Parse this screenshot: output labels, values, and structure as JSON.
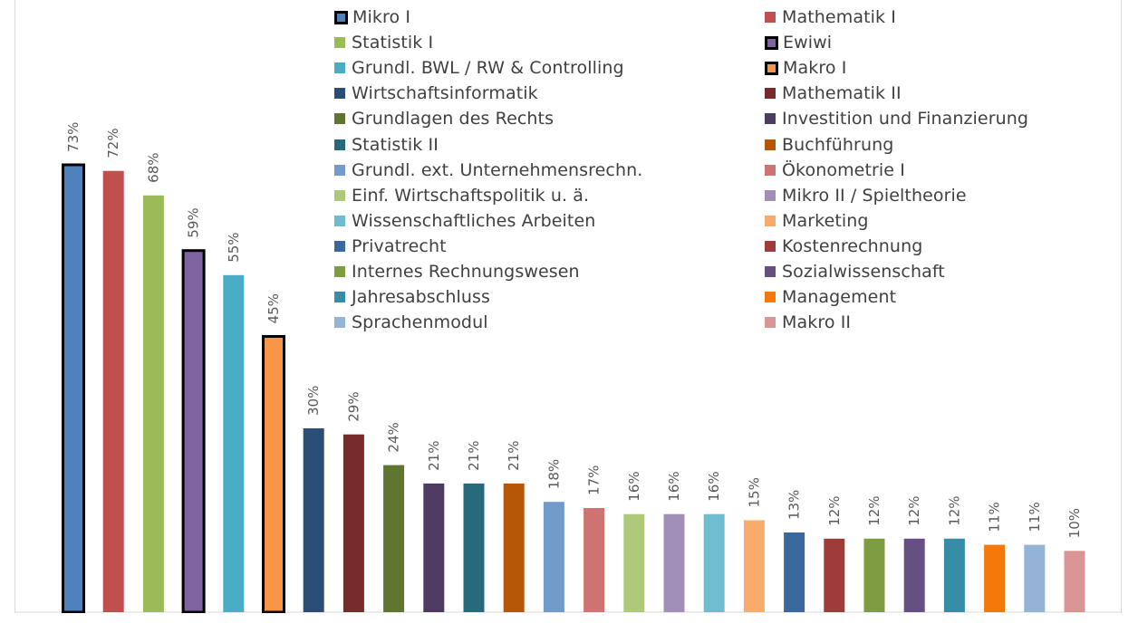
{
  "chart_data": {
    "type": "bar",
    "title": "",
    "xlabel": "",
    "ylabel": "",
    "ylim": [
      0,
      0.86
    ],
    "value_format": "percent",
    "categories": [
      "Mikro I",
      "Mathematik I",
      "Statistik I",
      "Ewiwi",
      "Grundl.  BWL / RW & Controlling",
      "Makro I",
      "Wirtschaftsinformatik",
      "Mathematik II",
      "Grundlagen des Rechts",
      "Investition und Finanzierung",
      "Statistik II",
      "Buchführung",
      "Grundl. ext. Unternehmensrechn.",
      "Ökonometrie I",
      "Einf. Wirtschaftspolitik u. ä.",
      "Mikro II / Spieltheorie",
      "Wissenschaftliches Arbeiten",
      "Marketing",
      "Privatrecht",
      "Kostenrechnung",
      "Internes Rechnungswesen",
      "Sozialwissenschaft",
      "Jahresabschluss",
      "Management",
      "Sprachenmodul",
      "Makro II"
    ],
    "values": [
      0.73,
      0.72,
      0.68,
      0.59,
      0.55,
      0.45,
      0.3,
      0.29,
      0.24,
      0.21,
      0.21,
      0.21,
      0.18,
      0.17,
      0.16,
      0.16,
      0.16,
      0.15,
      0.13,
      0.12,
      0.12,
      0.12,
      0.12,
      0.11,
      0.11,
      0.1
    ],
    "labels": [
      "73%",
      "72%",
      "68%",
      "59%",
      "55%",
      "45%",
      "30%",
      "29%",
      "24%",
      "21%",
      "21%",
      "21%",
      "18%",
      "17%",
      "16%",
      "16%",
      "16%",
      "15%",
      "13%",
      "12%",
      "12%",
      "12%",
      "12%",
      "11%",
      "11%",
      "10%"
    ],
    "colors": [
      "#4F81BD",
      "#C0504D",
      "#9BBB59",
      "#8064A2",
      "#4BACC6",
      "#F79646",
      "#2C4D75",
      "#772C2A",
      "#5F7530",
      "#4D3B62",
      "#276A7C",
      "#B65708",
      "#729ACA",
      "#CD7371",
      "#AFC97A",
      "#A18FB8",
      "#6FBDD1",
      "#F9AB6B",
      "#3A679C",
      "#9F3B38",
      "#7E9D40",
      "#664F83",
      "#358EA6",
      "#F2790A",
      "#95B3D7",
      "#D99694"
    ],
    "highlighted": [
      "Mikro I",
      "Ewiwi",
      "Makro I"
    ],
    "legend_position": "top-right",
    "grid": false
  }
}
